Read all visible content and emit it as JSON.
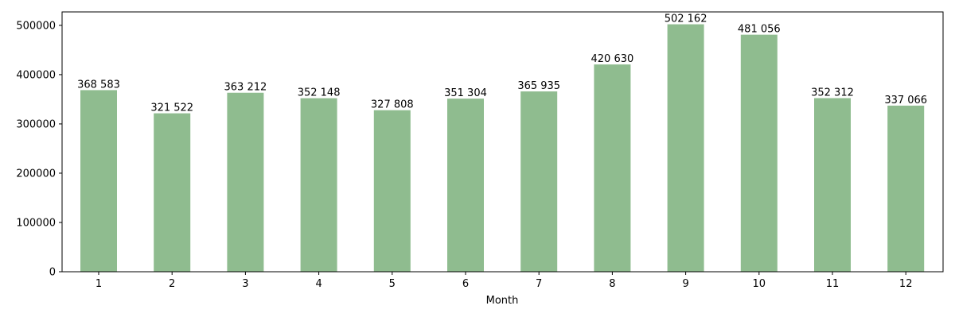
{
  "chart_data": {
    "type": "bar",
    "title": "",
    "xlabel": "Month",
    "ylabel": "",
    "categories": [
      "1",
      "2",
      "3",
      "4",
      "5",
      "6",
      "7",
      "8",
      "9",
      "10",
      "11",
      "12"
    ],
    "values": [
      368583,
      321522,
      363212,
      352148,
      327808,
      351304,
      365935,
      420630,
      502162,
      481056,
      352312,
      337066
    ],
    "value_labels": [
      "368 583",
      "321 522",
      "363 212",
      "352 148",
      "327 808",
      "351 304",
      "365 935",
      "420 630",
      "502 162",
      "481 056",
      "352 312",
      "337 066"
    ],
    "yticks": [
      0,
      100000,
      200000,
      300000,
      400000,
      500000
    ],
    "ytick_labels": [
      "0",
      "100000",
      "200000",
      "300000",
      "400000",
      "500000"
    ],
    "ylim": [
      0,
      527270
    ],
    "grid": false,
    "legend": "none",
    "bar_color": "#8fbc8f"
  }
}
